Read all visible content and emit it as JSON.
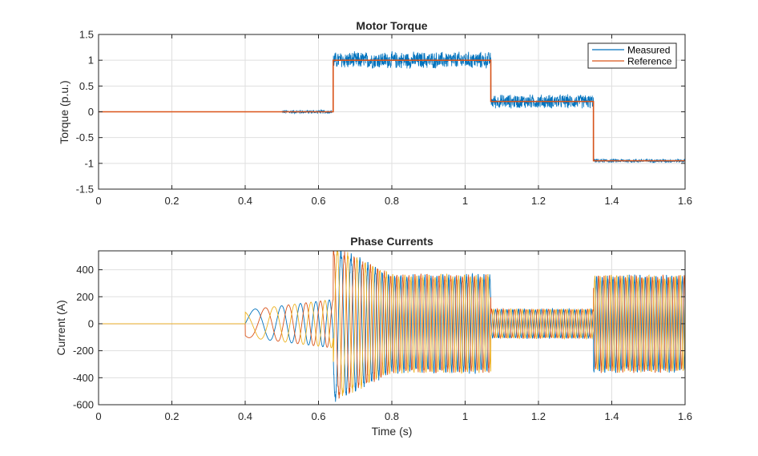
{
  "colors": {
    "measured": "#0072BD",
    "reference": "#D95319",
    "phase_a": "#0072BD",
    "phase_b": "#D95319",
    "phase_c": "#EDB120",
    "grid": "#dfdfdf",
    "axis": "#262626"
  },
  "chart_data": [
    {
      "type": "line",
      "title": "Motor Torque",
      "xlabel": "",
      "ylabel": "Torque (p.u.)",
      "xlim": [
        0,
        1.6
      ],
      "ylim": [
        -1.5,
        1.5
      ],
      "xticks": [
        "0",
        "0.2",
        "0.4",
        "0.6",
        "0.8",
        "1",
        "1.2",
        "1.4",
        "1.6"
      ],
      "xtick_values": [
        0,
        0.2,
        0.4,
        0.6,
        0.8,
        1.0,
        1.2,
        1.4,
        1.6
      ],
      "yticks": [
        "1.5",
        "1",
        "0.5",
        "0",
        "-0.5",
        "-1",
        "-1.5"
      ],
      "ytick_values": [
        1.5,
        1,
        0.5,
        0,
        -0.5,
        -1,
        -1.5
      ],
      "grid": true,
      "legend_position": "top-right",
      "series": [
        {
          "name": "Reference",
          "x": [
            0,
            0.64,
            0.64,
            1.07,
            1.07,
            1.35,
            1.35,
            1.6
          ],
          "y": [
            0,
            0,
            1.0,
            1.0,
            0.2,
            0.2,
            -0.95,
            -0.95
          ]
        },
        {
          "name": "Measured",
          "segments": [
            {
              "t0": 0.0,
              "t1": 0.5,
              "mean": 0.0,
              "ripple": 0.0
            },
            {
              "t0": 0.5,
              "t1": 0.64,
              "mean": 0.0,
              "ripple": 0.04
            },
            {
              "t0": 0.64,
              "t1": 1.07,
              "mean": 1.0,
              "ripple": 0.18
            },
            {
              "t0": 1.07,
              "t1": 1.35,
              "mean": 0.2,
              "ripple": 0.15
            },
            {
              "t0": 1.35,
              "t1": 1.6,
              "mean": -0.95,
              "ripple": 0.04
            }
          ]
        }
      ],
      "legend": [
        "Measured",
        "Reference"
      ]
    },
    {
      "type": "line",
      "title": "Phase Currents",
      "xlabel": "Time (s)",
      "ylabel": "Current (A)",
      "xlim": [
        0,
        1.6
      ],
      "ylim": [
        -600,
        540
      ],
      "xticks": [
        "0",
        "0.2",
        "0.4",
        "0.6",
        "0.8",
        "1",
        "1.2",
        "1.4",
        "1.6"
      ],
      "xtick_values": [
        0,
        0.2,
        0.4,
        0.6,
        0.8,
        1.0,
        1.2,
        1.4,
        1.6
      ],
      "yticks": [
        "400",
        "200",
        "0",
        "-200",
        "-400",
        "-600"
      ],
      "ytick_values": [
        400,
        200,
        0,
        -200,
        -400,
        -600
      ],
      "grid": true,
      "envelope": [
        {
          "t0": 0.0,
          "t1": 0.4,
          "amp0": 0,
          "amp1": 0
        },
        {
          "t0": 0.4,
          "t1": 0.64,
          "amp0": 100,
          "amp1": 180
        },
        {
          "t0": 0.64,
          "t1": 0.8,
          "amp0": 560,
          "amp1": 350
        },
        {
          "t0": 0.8,
          "t1": 1.07,
          "amp0": 350,
          "amp1": 350
        },
        {
          "t0": 1.07,
          "t1": 1.35,
          "amp0": 105,
          "amp1": 105
        },
        {
          "t0": 1.35,
          "t1": 1.6,
          "amp0": 345,
          "amp1": 345
        }
      ],
      "frequency": [
        {
          "t": 0.4,
          "hz": 8
        },
        {
          "t": 0.64,
          "hz": 30
        },
        {
          "t": 0.8,
          "hz": 60
        },
        {
          "t": 1.6,
          "hz": 70
        }
      ]
    }
  ]
}
